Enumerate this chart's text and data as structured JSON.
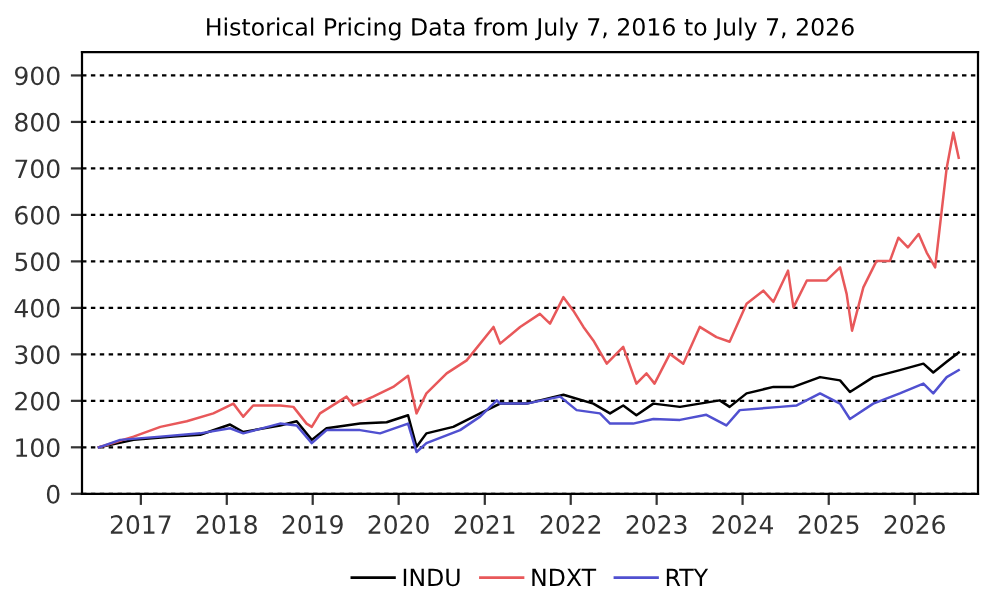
{
  "chart_data": {
    "type": "line",
    "title": "Historical Pricing Data from July 7, 2016 to July 7, 2026",
    "xlim": [
      "2016-04-26",
      "2026-09-27"
    ],
    "ylim": [
      0,
      950
    ],
    "xticks": [
      {
        "value": "2017-01-01",
        "label": "2017"
      },
      {
        "value": "2018-01-01",
        "label": "2018"
      },
      {
        "value": "2019-01-01",
        "label": "2019"
      },
      {
        "value": "2020-01-01",
        "label": "2020"
      },
      {
        "value": "2021-01-01",
        "label": "2021"
      },
      {
        "value": "2022-01-01",
        "label": "2022"
      },
      {
        "value": "2023-01-01",
        "label": "2023"
      },
      {
        "value": "2024-01-01",
        "label": "2024"
      },
      {
        "value": "2025-01-01",
        "label": "2025"
      },
      {
        "value": "2026-01-01",
        "label": "2026"
      }
    ],
    "yticks": [
      0,
      100,
      200,
      300,
      400,
      500,
      600,
      700,
      800,
      900
    ],
    "grid": "y",
    "legend": "bottom",
    "line_style": "solid",
    "marker": "none",
    "series": [
      {
        "name": "INDU",
        "color": "#000000",
        "x": [
          "2016-07-07",
          "2016-12-01",
          "2017-05-20",
          "2017-09-10",
          "2018-01-15",
          "2018-03-12",
          "2018-08-15",
          "2018-10-25",
          "2018-12-28",
          "2019-03-01",
          "2019-07-21",
          "2019-11-11",
          "2020-02-10",
          "2020-03-17",
          "2020-04-28",
          "2020-08-20",
          "2020-12-12",
          "2021-03-07",
          "2021-06-28",
          "2021-12-01",
          "2022-04-07",
          "2022-06-17",
          "2022-08-12",
          "2022-10-07",
          "2022-12-18",
          "2023-04-10",
          "2023-07-03",
          "2023-09-26",
          "2023-11-07",
          "2024-01-18",
          "2024-05-11",
          "2024-08-04",
          "2024-11-25",
          "2025-02-18",
          "2025-04-01",
          "2025-07-09",
          "2025-10-30",
          "2026-02-07",
          "2026-03-21",
          "2026-05-17",
          "2026-07-07"
        ],
        "values": [
          100,
          116,
          123,
          127,
          149,
          133,
          147,
          156,
          116,
          141,
          151,
          154,
          169,
          101,
          130,
          144,
          173,
          194,
          194,
          213,
          194,
          173,
          190,
          169,
          194,
          187,
          194,
          201,
          187,
          216,
          230,
          230,
          251,
          244,
          219,
          251,
          266,
          280,
          261,
          284,
          304
        ]
      },
      {
        "name": "NDXT",
        "color": "#e8585a",
        "x": [
          "2016-07-07",
          "2016-12-01",
          "2017-03-25",
          "2017-07-15",
          "2017-11-05",
          "2018-01-29",
          "2018-03-12",
          "2018-04-23",
          "2018-08-15",
          "2018-10-11",
          "2018-12-06",
          "2018-12-28",
          "2019-02-01",
          "2019-05-25",
          "2019-06-23",
          "2019-09-15",
          "2019-12-09",
          "2020-02-10",
          "2020-03-17",
          "2020-04-28",
          "2020-07-23",
          "2020-10-16",
          "2021-02-07",
          "2021-03-07",
          "2021-05-31",
          "2021-08-23",
          "2021-10-05",
          "2021-12-01",
          "2022-01-12",
          "2022-02-24",
          "2022-04-07",
          "2022-06-03",
          "2022-08-12",
          "2022-10-07",
          "2022-11-19",
          "2022-12-23",
          "2023-02-26",
          "2023-04-24",
          "2023-07-03",
          "2023-09-12",
          "2023-11-07",
          "2024-01-18",
          "2024-03-29",
          "2024-05-11",
          "2024-07-12",
          "2024-08-04",
          "2024-09-30",
          "2024-12-23",
          "2025-02-18",
          "2025-03-18",
          "2025-04-10",
          "2025-05-28",
          "2025-07-23",
          "2025-09-18",
          "2025-10-24",
          "2025-12-03",
          "2026-01-18",
          "2026-02-21",
          "2026-03-29",
          "2026-04-24",
          "2026-05-17",
          "2026-06-14",
          "2026-07-07"
        ],
        "values": [
          100,
          123,
          144,
          156,
          173,
          194,
          166,
          190,
          190,
          187,
          151,
          144,
          173,
          209,
          190,
          209,
          230,
          254,
          173,
          216,
          259,
          287,
          359,
          323,
          359,
          387,
          366,
          423,
          394,
          359,
          330,
          280,
          316,
          237,
          259,
          237,
          301,
          280,
          359,
          337,
          327,
          409,
          437,
          413,
          480,
          401,
          459,
          459,
          487,
          430,
          351,
          444,
          501,
          501,
          551,
          530,
          559,
          519,
          487,
          601,
          701,
          777,
          723
        ]
      },
      {
        "name": "RTY",
        "color": "#5050d0",
        "x": [
          "2016-07-07",
          "2016-10-05",
          "2017-03-25",
          "2017-09-10",
          "2018-01-15",
          "2018-03-12",
          "2018-08-15",
          "2018-10-25",
          "2018-12-28",
          "2019-03-01",
          "2019-07-21",
          "2019-10-14",
          "2020-02-10",
          "2020-03-17",
          "2020-04-28",
          "2020-09-18",
          "2020-12-12",
          "2021-02-21",
          "2021-03-07",
          "2021-06-28",
          "2021-11-17",
          "2022-01-26",
          "2022-05-05",
          "2022-06-17",
          "2022-09-23",
          "2022-12-18",
          "2023-04-10",
          "2023-07-31",
          "2023-10-24",
          "2023-12-20",
          "2024-06-08",
          "2024-08-18",
          "2024-11-25",
          "2025-02-18",
          "2025-04-01",
          "2025-07-09",
          "2025-10-30",
          "2026-02-07",
          "2026-03-21",
          "2026-05-17",
          "2026-07-07"
        ],
        "values": [
          100,
          116,
          123,
          130,
          141,
          130,
          151,
          147,
          109,
          137,
          137,
          130,
          151,
          90,
          109,
          137,
          166,
          201,
          194,
          194,
          209,
          180,
          173,
          151,
          151,
          161,
          159,
          170,
          147,
          180,
          187,
          190,
          216,
          194,
          161,
          194,
          216,
          237,
          216,
          251,
          266
        ]
      }
    ]
  }
}
